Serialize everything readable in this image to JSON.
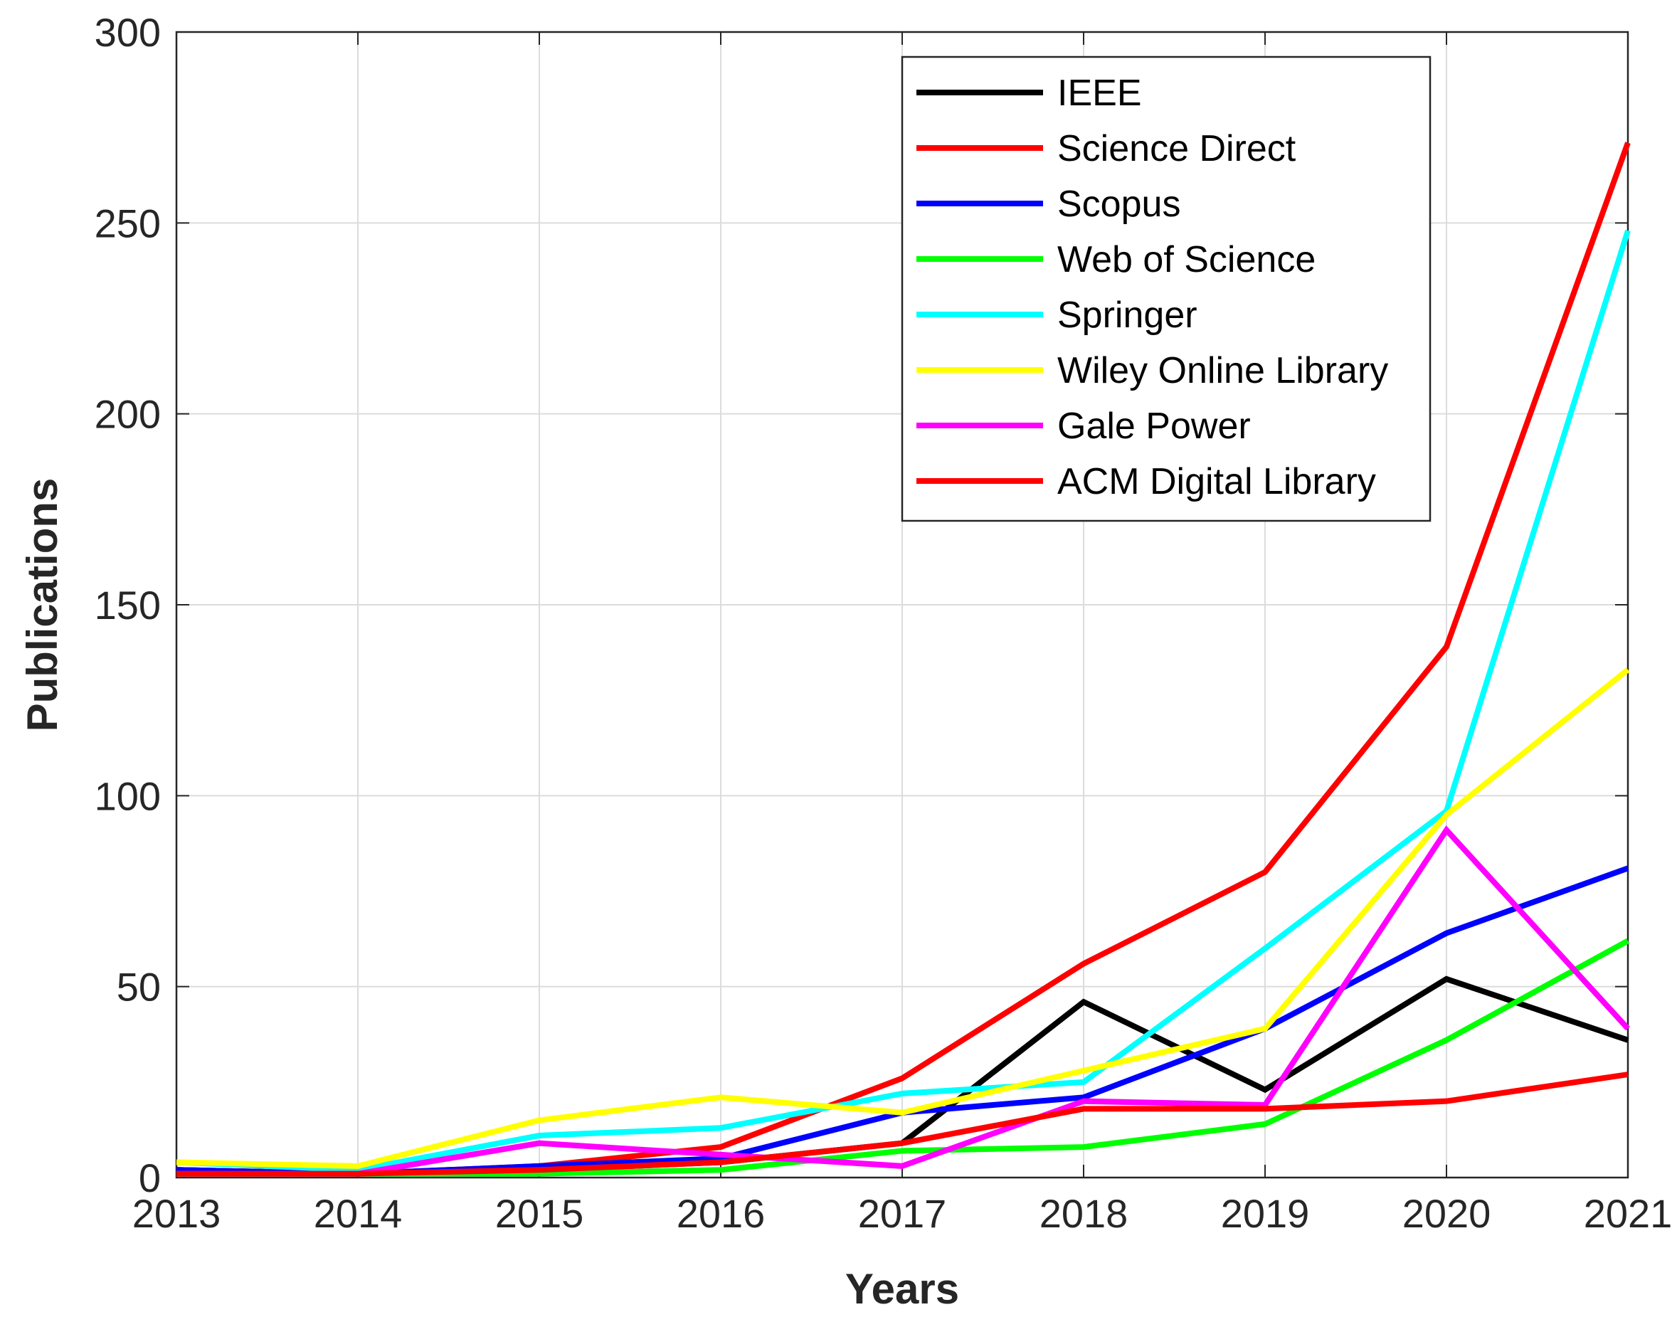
{
  "chart_data": {
    "type": "line",
    "xlabel": "Years",
    "ylabel": "Publications",
    "x": [
      2013,
      2014,
      2015,
      2016,
      2017,
      2018,
      2019,
      2020,
      2021
    ],
    "xlim": [
      2013,
      2021
    ],
    "ylim": [
      0,
      300
    ],
    "yticks": [
      0,
      50,
      100,
      150,
      200,
      250,
      300
    ],
    "grid": true,
    "legend_position": "top-right",
    "series": [
      {
        "name": "IEEE",
        "color": "#000000",
        "values": [
          2,
          1,
          2,
          4,
          9,
          46,
          23,
          52,
          36
        ]
      },
      {
        "name": "Science Direct",
        "color": "#ff0000",
        "values": [
          2,
          1,
          3,
          8,
          26,
          56,
          80,
          139,
          271
        ]
      },
      {
        "name": "Scopus",
        "color": "#0000ff",
        "values": [
          2,
          1,
          3,
          5,
          17,
          21,
          39,
          64,
          81
        ]
      },
      {
        "name": "Web of Science",
        "color": "#00ff00",
        "values": [
          1,
          1,
          1,
          2,
          7,
          8,
          14,
          36,
          62
        ]
      },
      {
        "name": "Springer",
        "color": "#00ffff",
        "values": [
          4,
          2,
          11,
          13,
          22,
          25,
          60,
          96,
          248
        ]
      },
      {
        "name": "Wiley Online Library",
        "color": "#ffff00",
        "values": [
          4,
          3,
          15,
          21,
          17,
          28,
          39,
          95,
          133
        ]
      },
      {
        "name": "Gale Power",
        "color": "#ff00ff",
        "values": [
          1,
          1,
          9,
          6,
          3,
          20,
          19,
          91,
          39
        ]
      },
      {
        "name": "ACM Digital Library",
        "color": "#ff0000",
        "values": [
          1,
          1,
          2,
          4,
          9,
          18,
          18,
          20,
          27
        ]
      }
    ]
  }
}
